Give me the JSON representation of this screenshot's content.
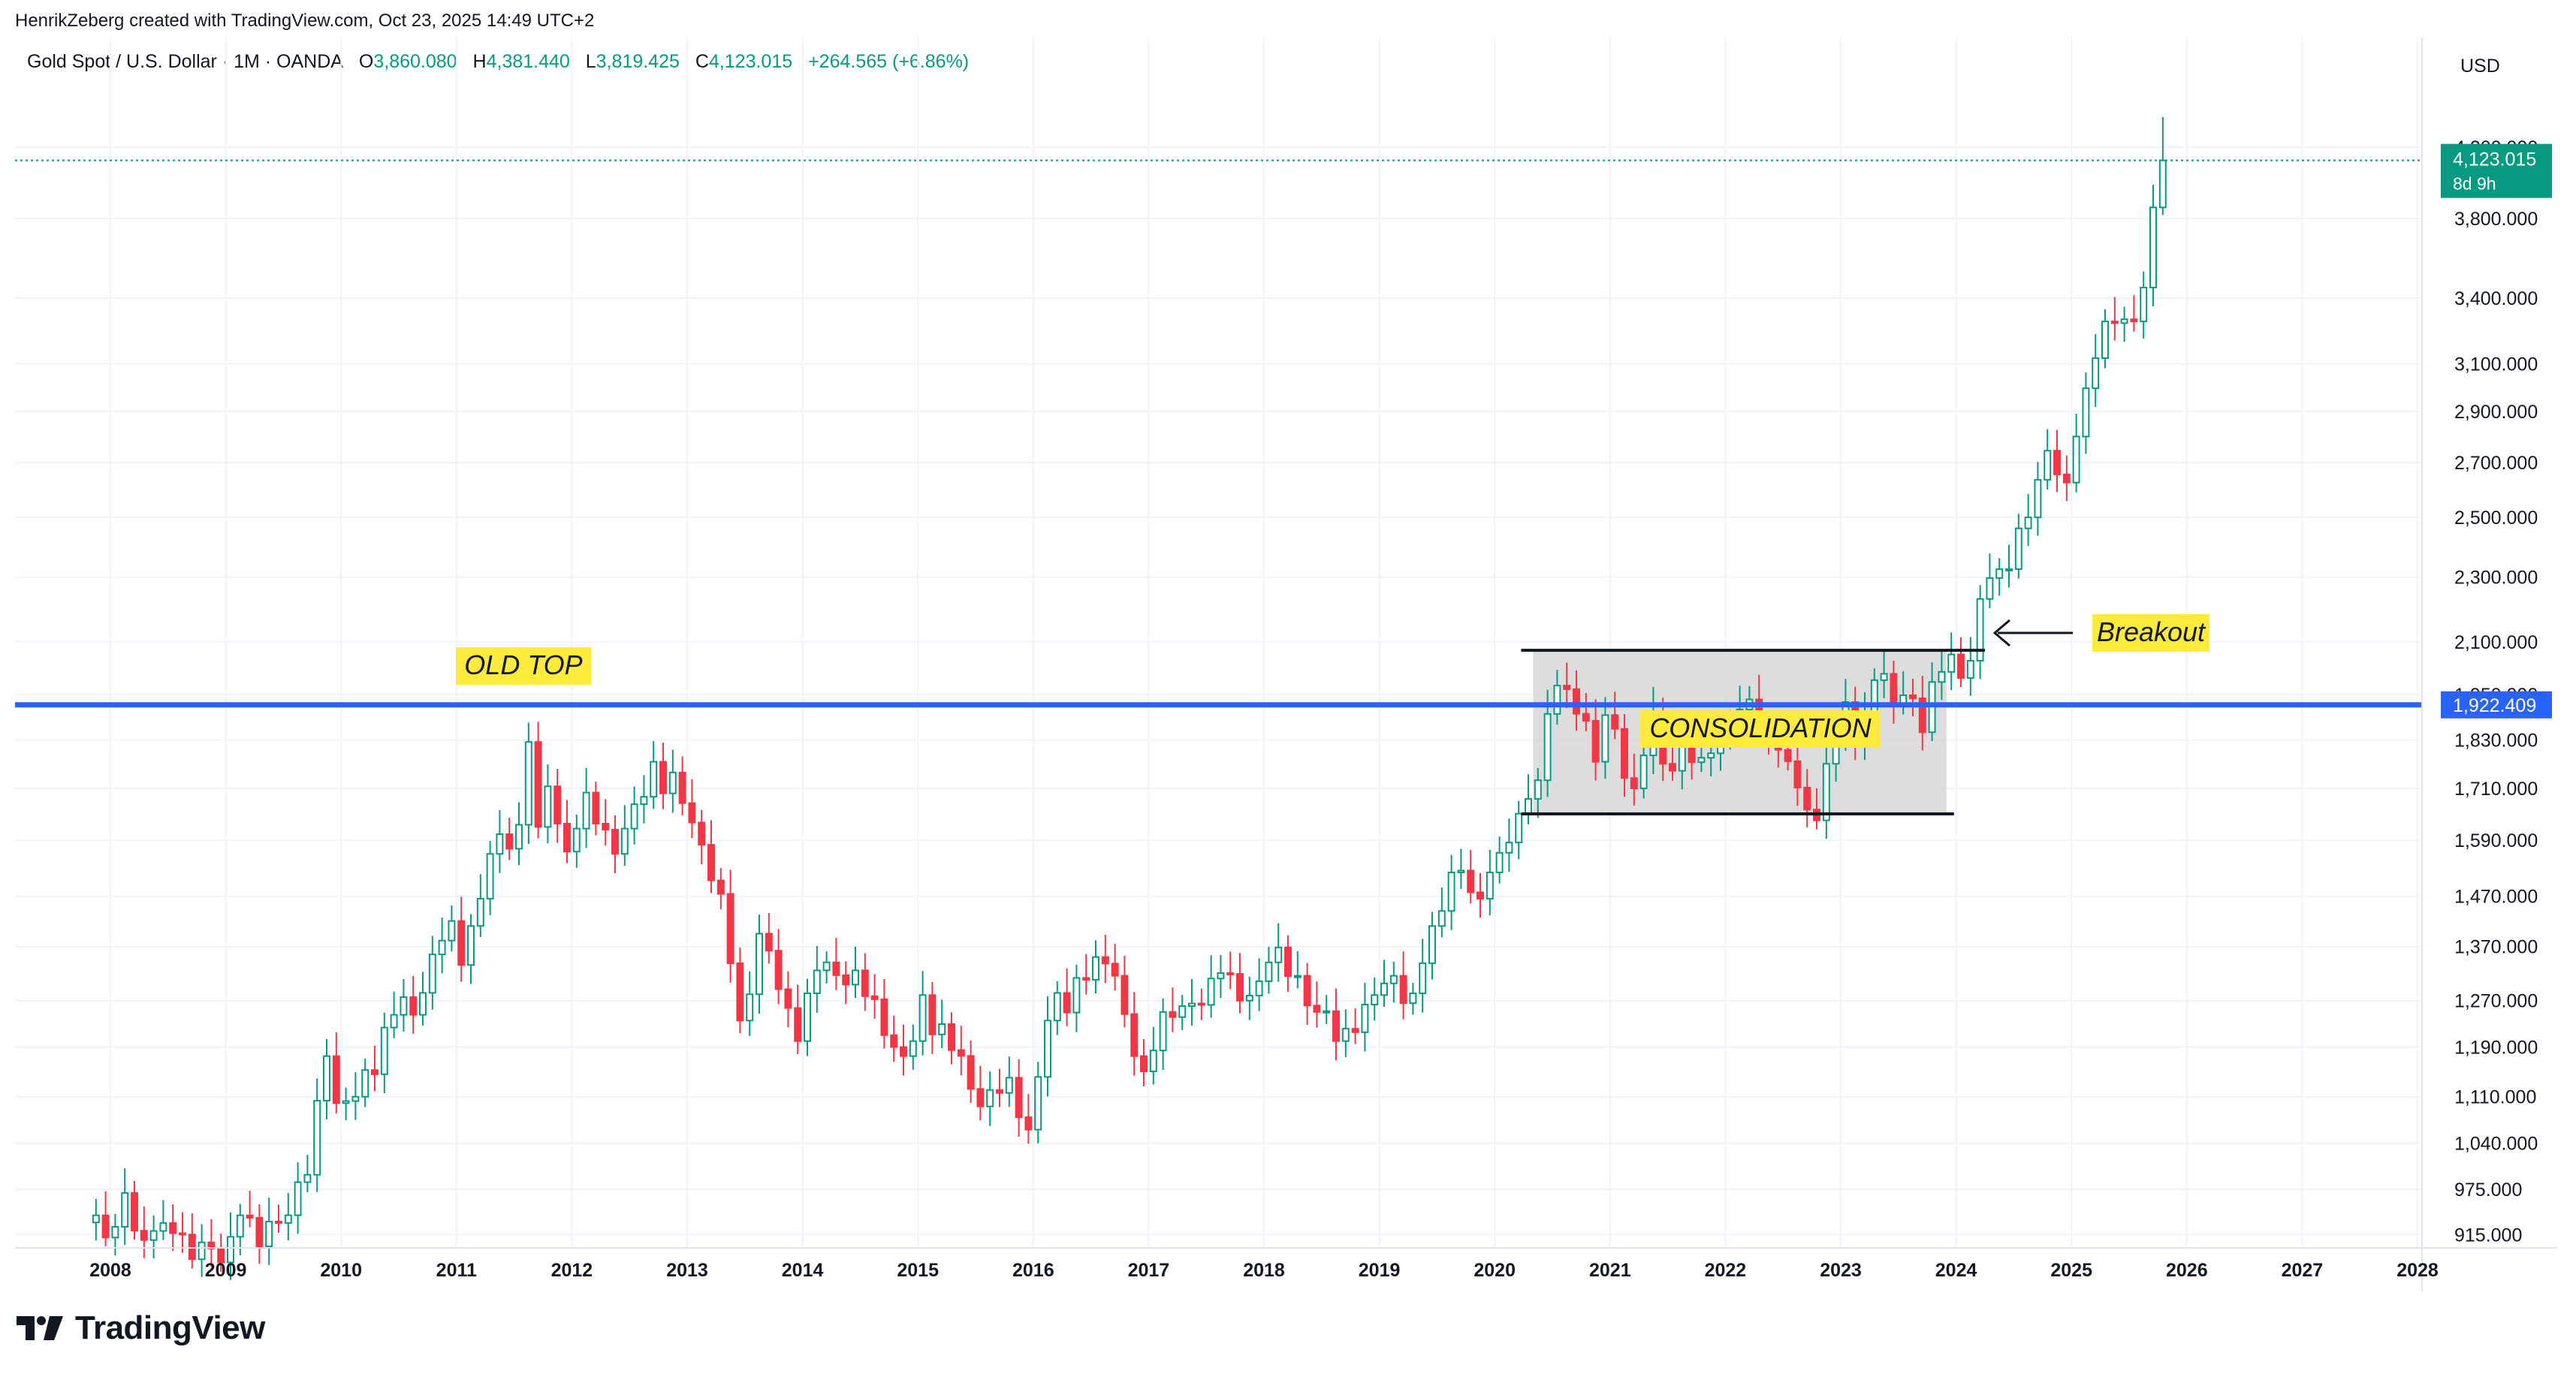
{
  "header": {
    "credit": "HenrikZeberg created with TradingView.com, Oct 23, 2025 14:49 UTC+2"
  },
  "legend": {
    "symbol": "Gold Spot / U.S. Dollar · 1M · OANDA",
    "o_label": "O",
    "o_value": "3,860.080",
    "h_label": "H",
    "h_value": "4,381.440",
    "l_label": "L",
    "l_value": "3,819.425",
    "c_label": "C",
    "c_value": "4,123.015",
    "change": "+264.565 (+6.86%)"
  },
  "brand": {
    "logo_icon": "tradingview-logo-icon",
    "name": "TradingView"
  },
  "colors": {
    "up": "#089981",
    "down": "#f23645",
    "blue_line": "#2962ff",
    "highlight": "#ffeb3b",
    "box": "#d1d1d1",
    "grid": "#f0f3fa",
    "text": "#131722"
  },
  "chart_data": {
    "type": "candlestick",
    "timeframe": "1M",
    "currency": "USD",
    "y_scale": "log",
    "ylim": [
      900,
      4550
    ],
    "y_ticks": [
      915,
      975,
      1040,
      1110,
      1190,
      1270,
      1370,
      1470,
      1590,
      1710,
      1830,
      1950,
      2100,
      2300,
      2500,
      2700,
      2900,
      3100,
      3400,
      3800,
      4200
    ],
    "y_tick_labels": [
      "915.000",
      "975.000",
      "1,040.000",
      "1,110.000",
      "1,190.000",
      "1,270.000",
      "1,370.000",
      "1,470.000",
      "1,590.000",
      "1,710.000",
      "1,830.000",
      "1,950.000",
      "2,100.000",
      "2,300.000",
      "2,500.000",
      "2,700.000",
      "2,900.000",
      "3,100.000",
      "3,400.000",
      "3,800.000",
      "4,200.000"
    ],
    "x_years": [
      "2008",
      "2009",
      "2010",
      "2011",
      "2012",
      "2013",
      "2014",
      "2015",
      "2016",
      "2017",
      "2018",
      "2019",
      "2020",
      "2021",
      "2022",
      "2023",
      "2024",
      "2025",
      "2026",
      "2027",
      "2028"
    ],
    "last_price_label": "4,123.015",
    "countdown_label": "8d 9h",
    "horizontal_line": {
      "value": 1922.409,
      "label": "1,922.409"
    },
    "consolidation": {
      "start": "2020-05",
      "end": "2023-12",
      "top": 2075,
      "bottom": 1650
    },
    "annotations": {
      "old_top": "OLD TOP",
      "consolidation": "CONSOLIDATION",
      "breakout": "Breakout"
    },
    "close_points": [
      [
        "2007-11",
        940
      ],
      [
        "2008-01",
        925
      ],
      [
        "2008-02",
        970
      ],
      [
        "2008-03",
        920
      ],
      [
        "2008-06",
        930
      ],
      [
        "2008-08",
        915
      ],
      [
        "2008-10",
        905
      ],
      [
        "2008-12",
        880
      ],
      [
        "2009-02",
        940
      ],
      [
        "2009-04",
        900
      ],
      [
        "2009-06",
        930
      ],
      [
        "2009-09",
        995
      ],
      [
        "2009-11",
        1175
      ],
      [
        "2009-12",
        1100
      ],
      [
        "2010-02",
        1110
      ],
      [
        "2010-06",
        1245
      ],
      [
        "2010-08",
        1245
      ],
      [
        "2010-10",
        1355
      ],
      [
        "2010-12",
        1420
      ],
      [
        "2011-01",
        1335
      ],
      [
        "2011-04",
        1560
      ],
      [
        "2011-07",
        1625
      ],
      [
        "2011-08",
        1825
      ],
      [
        "2011-09",
        1620
      ],
      [
        "2011-10",
        1715
      ],
      [
        "2011-12",
        1565
      ],
      [
        "2012-02",
        1700
      ],
      [
        "2012-05",
        1560
      ],
      [
        "2012-08",
        1690
      ],
      [
        "2012-09",
        1775
      ],
      [
        "2012-12",
        1675
      ],
      [
        "2013-02",
        1580
      ],
      [
        "2013-04",
        1475
      ],
      [
        "2013-06",
        1235
      ],
      [
        "2013-08",
        1395
      ],
      [
        "2013-12",
        1200
      ],
      [
        "2014-02",
        1325
      ],
      [
        "2014-06",
        1325
      ],
      [
        "2014-09",
        1210
      ],
      [
        "2014-11",
        1175
      ],
      [
        "2014-12",
        1200
      ],
      [
        "2015-01",
        1280
      ],
      [
        "2015-04",
        1185
      ],
      [
        "2015-07",
        1095
      ],
      [
        "2015-10",
        1140
      ],
      [
        "2015-12",
        1060
      ],
      [
        "2016-02",
        1235
      ],
      [
        "2016-07",
        1350
      ],
      [
        "2016-09",
        1315
      ],
      [
        "2016-11",
        1175
      ],
      [
        "2016-12",
        1150
      ],
      [
        "2017-02",
        1250
      ],
      [
        "2017-05",
        1265
      ],
      [
        "2017-08",
        1320
      ],
      [
        "2017-10",
        1270
      ],
      [
        "2017-12",
        1305
      ],
      [
        "2018-01",
        1340
      ],
      [
        "2018-04",
        1315
      ],
      [
        "2018-06",
        1250
      ],
      [
        "2018-08",
        1200
      ],
      [
        "2018-10",
        1215
      ],
      [
        "2018-12",
        1280
      ],
      [
        "2019-02",
        1315
      ],
      [
        "2019-04",
        1283
      ],
      [
        "2019-06",
        1410
      ],
      [
        "2019-08",
        1520
      ],
      [
        "2019-11",
        1465
      ],
      [
        "2019-12",
        1520
      ],
      [
        "2020-02",
        1585
      ],
      [
        "2020-04",
        1685
      ],
      [
        "2020-07",
        1975
      ],
      [
        "2020-08",
        1965
      ],
      [
        "2020-10",
        1880
      ],
      [
        "2020-11",
        1775
      ],
      [
        "2020-12",
        1895
      ],
      [
        "2021-02",
        1735
      ],
      [
        "2021-03",
        1710
      ],
      [
        "2021-05",
        1905
      ],
      [
        "2021-06",
        1770
      ],
      [
        "2021-08",
        1815
      ],
      [
        "2021-10",
        1785
      ],
      [
        "2021-12",
        1830
      ],
      [
        "2022-02",
        1910
      ],
      [
        "2022-03",
        1937
      ],
      [
        "2022-05",
        1840
      ],
      [
        "2022-06",
        1805
      ],
      [
        "2022-08",
        1712
      ],
      [
        "2022-09",
        1660
      ],
      [
        "2022-10",
        1635
      ],
      [
        "2022-11",
        1770
      ],
      [
        "2022-12",
        1825
      ],
      [
        "2023-01",
        1930
      ],
      [
        "2023-02",
        1825
      ],
      [
        "2023-04",
        1990
      ],
      [
        "2023-06",
        1920
      ],
      [
        "2023-08",
        1940
      ],
      [
        "2023-09",
        1850
      ],
      [
        "2023-10",
        1985
      ],
      [
        "2023-12",
        2063
      ],
      [
        "2024-02",
        2045
      ],
      [
        "2024-03",
        2230
      ],
      [
        "2024-05",
        2325
      ],
      [
        "2024-06",
        2325
      ],
      [
        "2024-08",
        2500
      ],
      [
        "2024-09",
        2635
      ],
      [
        "2024-10",
        2745
      ],
      [
        "2024-11",
        2655
      ],
      [
        "2024-12",
        2625
      ],
      [
        "2025-01",
        2800
      ],
      [
        "2025-03",
        3125
      ],
      [
        "2025-04",
        3290
      ],
      [
        "2025-06",
        3300
      ],
      [
        "2025-07",
        3290
      ],
      [
        "2025-08",
        3450
      ],
      [
        "2025-09",
        3860
      ],
      [
        "2025-10",
        4123.015
      ]
    ]
  }
}
